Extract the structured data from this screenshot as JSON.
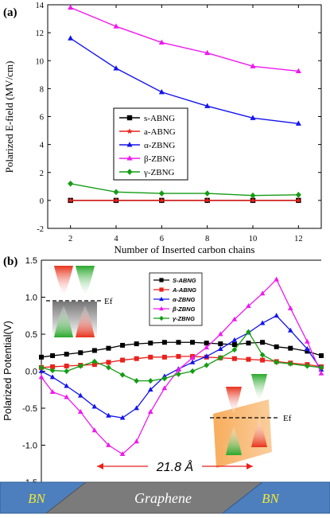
{
  "chart_data": [
    {
      "type": "line",
      "panel_label": "(a)",
      "xlabel": "Number of Inserted carbon chains",
      "ylabel": "Polarized E-field (MV/cm)",
      "xlim": [
        1,
        13
      ],
      "ylim": [
        -2,
        14
      ],
      "xticks": [
        2,
        4,
        6,
        8,
        10,
        12
      ],
      "yticks": [
        -2,
        0,
        2,
        4,
        6,
        8,
        10,
        12,
        14
      ],
      "x": [
        2,
        4,
        6,
        8,
        10,
        12
      ],
      "legend_position": "center-right",
      "series": [
        {
          "name": "s-ABNG",
          "color": "#000000",
          "marker": "square",
          "values": [
            0,
            0,
            0,
            0,
            0,
            0
          ]
        },
        {
          "name": "a-ABNG",
          "color": "#e8221c",
          "marker": "star",
          "values": [
            0,
            0,
            0,
            0,
            0,
            0
          ]
        },
        {
          "name": "α-ZBNG",
          "color": "#1414ee",
          "marker": "triangle-up",
          "values": [
            11.6,
            9.45,
            7.75,
            6.75,
            5.9,
            5.5
          ]
        },
        {
          "name": "β-ZBNG",
          "color": "#f018f0",
          "marker": "triangle-up",
          "values": [
            13.8,
            12.45,
            11.3,
            10.55,
            9.6,
            9.25
          ]
        },
        {
          "name": "γ-ZBNG",
          "color": "#149c14",
          "marker": "diamond",
          "values": [
            1.2,
            0.6,
            0.5,
            0.5,
            0.35,
            0.4
          ]
        }
      ]
    },
    {
      "type": "line",
      "panel_label": "(b)",
      "ylabel": "Polarized Potential(V)",
      "xlim": [
        0,
        100
      ],
      "ylim": [
        -1.5,
        1.5
      ],
      "yticks": [
        -1.5,
        -1.0,
        -0.5,
        0.0,
        0.5,
        1.0,
        1.5
      ],
      "x": [
        0,
        4,
        9,
        14,
        19,
        24,
        29,
        34,
        39,
        44,
        49,
        54,
        59,
        64,
        69,
        74,
        79,
        84,
        89,
        95,
        100
      ],
      "legend_position": "top-center",
      "series": [
        {
          "name": "S-ABNG",
          "color": "#000000",
          "marker": "square",
          "values": [
            0.19,
            0.21,
            0.23,
            0.25,
            0.28,
            0.31,
            0.35,
            0.37,
            0.38,
            0.39,
            0.39,
            0.39,
            0.38,
            0.37,
            0.36,
            0.38,
            0.39,
            0.33,
            0.31,
            0.27,
            0.21
          ]
        },
        {
          "name": "A-ABNG",
          "color": "#e8221c",
          "marker": "square",
          "values": [
            0.05,
            0.06,
            0.07,
            0.08,
            0.09,
            0.12,
            0.15,
            0.17,
            0.19,
            0.19,
            0.2,
            0.2,
            0.19,
            0.18,
            0.17,
            0.16,
            0.15,
            0.13,
            0.11,
            0.09,
            0.06
          ]
        },
        {
          "name": "α-ZBNG",
          "color": "#1414ee",
          "marker": "triangle-up",
          "values": [
            0.0,
            -0.08,
            -0.2,
            -0.33,
            -0.48,
            -0.6,
            -0.63,
            -0.5,
            -0.25,
            -0.07,
            0.03,
            0.12,
            0.2,
            0.3,
            0.42,
            0.52,
            0.65,
            0.75,
            0.55,
            0.3,
            0.02
          ]
        },
        {
          "name": "β-ZBNG",
          "color": "#f018f0",
          "marker": "triangle-up",
          "values": [
            -0.08,
            -0.28,
            -0.35,
            -0.55,
            -0.8,
            -1.0,
            -1.12,
            -0.95,
            -0.55,
            -0.23,
            0.02,
            0.18,
            0.32,
            0.5,
            0.7,
            0.88,
            1.05,
            1.24,
            0.85,
            0.4,
            -0.03
          ]
        },
        {
          "name": "γ-ZBNG",
          "color": "#149c14",
          "marker": "diamond",
          "values": [
            0.05,
            0.01,
            0.0,
            0.07,
            0.13,
            0.05,
            -0.05,
            -0.13,
            -0.13,
            -0.1,
            -0.04,
            0.0,
            0.08,
            0.18,
            0.29,
            0.53,
            0.22,
            0.12,
            0.1,
            0.07,
            0.05
          ]
        }
      ],
      "annotations": {
        "distance": "21.8 Å",
        "ef_top": "Ef",
        "ef_bottom": "Ef"
      },
      "materials": [
        "BN",
        "Graphene",
        "BN"
      ]
    }
  ]
}
